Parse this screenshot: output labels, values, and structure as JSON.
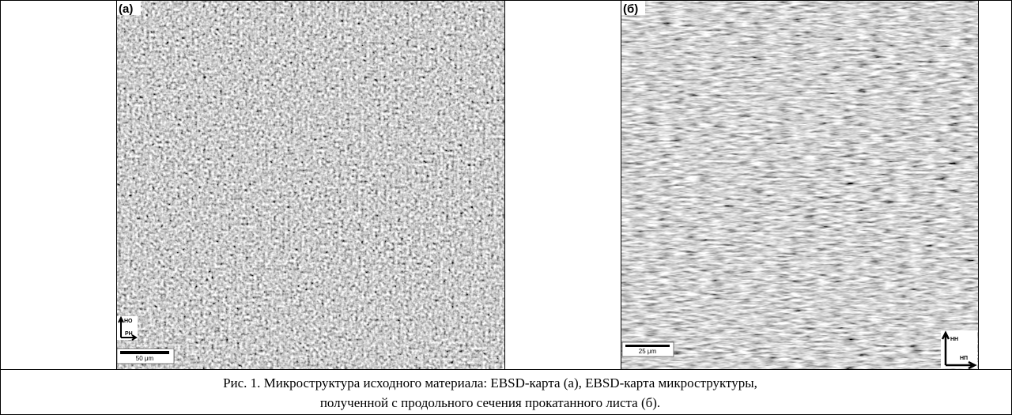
{
  "panels": [
    {
      "label": "(а)",
      "axis_up": "НО",
      "axis_right": "РН",
      "scale_bar": "50 μm"
    },
    {
      "label": "(б)",
      "axis_up": "НН",
      "axis_right": "НП",
      "scale_bar": "25 μm"
    }
  ],
  "caption": {
    "lines": [
      "Рис. 1. Микроструктура исходного материала: EBSD-карта (а), EBSD-карта микроструктуры,",
      "полученной с продольного сечения прокатанного листа (б)."
    ]
  }
}
